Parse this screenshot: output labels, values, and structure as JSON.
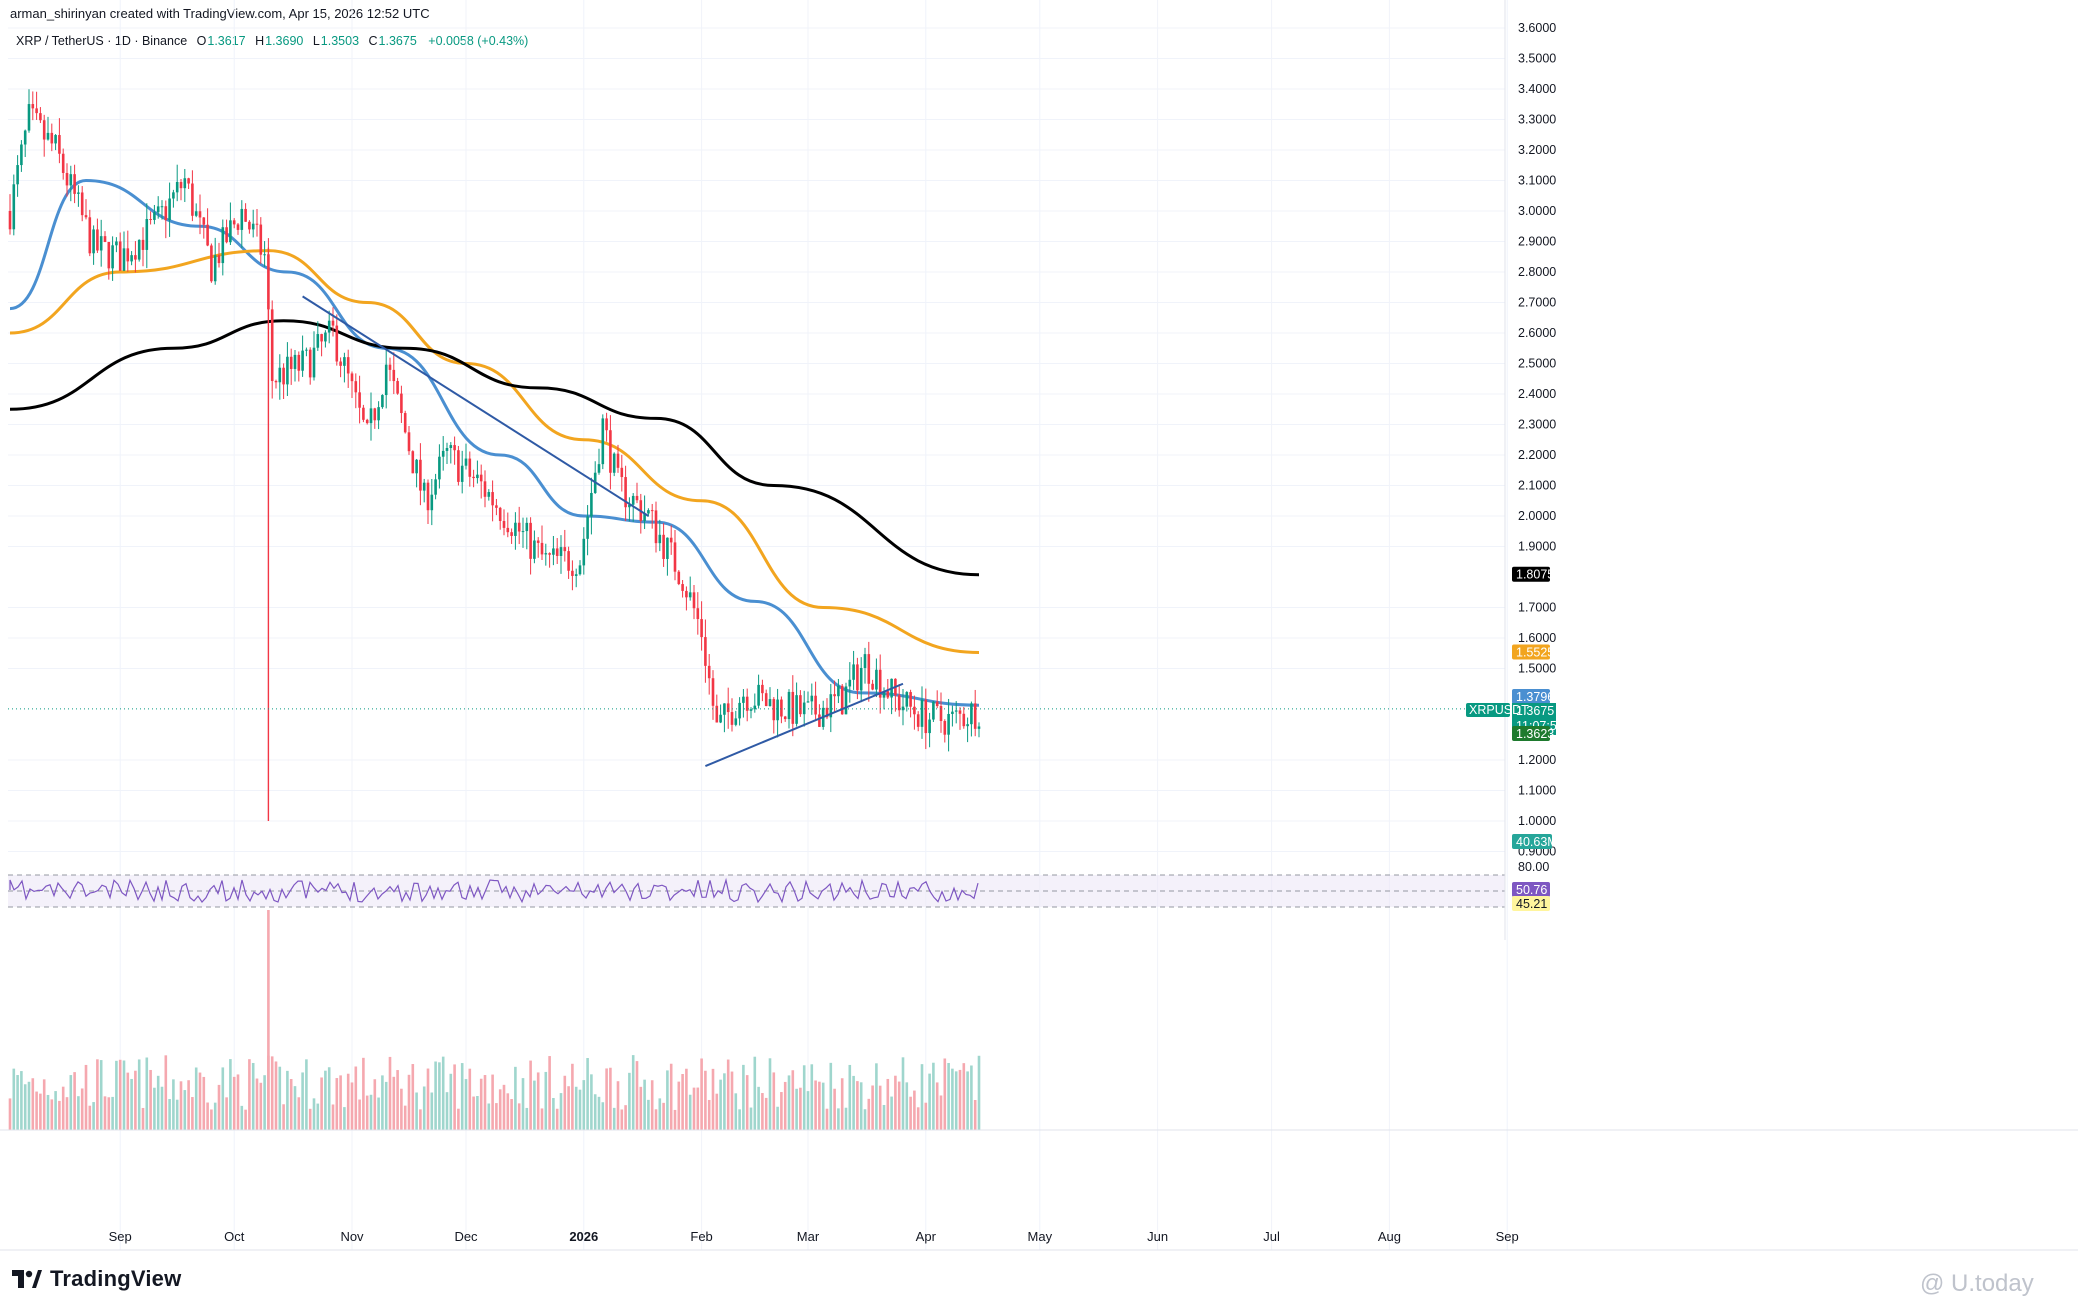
{
  "header": {
    "credit": "arman_shirinyan created with TradingView.com, Apr 15, 2026 12:52 UTC"
  },
  "legend": {
    "symbol": "XRP / TetherUS · 1D · Binance",
    "open_label": "O",
    "open": "1.3617",
    "high_label": "H",
    "high": "1.3690",
    "low_label": "L",
    "low": "1.3503",
    "close_label": "C",
    "close": "1.3675",
    "change": "+0.0058 (+0.43%)"
  },
  "colors": {
    "up": "#089981",
    "down": "#f23645",
    "ma_blue": "#4a8fd1",
    "ma_orange": "#f2a51f",
    "ma_black": "#000000",
    "ma_green": "#8fb38f",
    "trend": "#2f5aa5",
    "rsi": "#7e57c2"
  },
  "chart_data": {
    "type": "candlestick",
    "symbol": "XRP / TetherUS",
    "timeframe": "1D",
    "exchange": "Binance",
    "y_ticks": [
      "3.6000",
      "3.5000",
      "3.4000",
      "3.3000",
      "3.2000",
      "3.1000",
      "3.0000",
      "2.9000",
      "2.8000",
      "2.7000",
      "2.6000",
      "2.5000",
      "2.4000",
      "2.3000",
      "2.2000",
      "2.1000",
      "2.0000",
      "1.9000",
      "1.7000",
      "1.6000",
      "1.5000",
      "1.2000",
      "1.1000",
      "1.0000",
      "0.9000"
    ],
    "x_ticks": [
      "Sep",
      "Oct",
      "Nov",
      "Dec",
      "2026",
      "Feb",
      "Mar",
      "Apr",
      "May",
      "Jun",
      "Jul",
      "Aug",
      "Sep"
    ],
    "price_tags": [
      {
        "label": "1.8075",
        "value": 1.8075,
        "color": "#000000"
      },
      {
        "label": "1.5525",
        "value": 1.5525,
        "color": "#f2a51f"
      },
      {
        "label": "1.3796",
        "value": 1.3796,
        "color": "#4a8fd1"
      },
      {
        "label": "1.3675",
        "value": 1.3675,
        "color": "#089981"
      },
      {
        "label": "11:07:57",
        "value": null,
        "color": "#089981"
      },
      {
        "label": "1.3623",
        "value": 1.3623,
        "color": "#1e7a2e"
      }
    ],
    "symbol_tag": "XRPUSDT",
    "volume_tag": "40.63M",
    "rsi": {
      "upper": "80.00",
      "value": "50.76",
      "ma_value": "45.21"
    },
    "trend_lines": [
      {
        "from": [
          "Oct 19 2025",
          2.72
        ],
        "to": [
          "Jan 18 2026",
          2.0
        ]
      },
      {
        "from": [
          "Feb 2 2026",
          1.18
        ],
        "to": [
          "Mar 26 2026",
          1.45
        ]
      }
    ],
    "moving_averages": [
      {
        "color": "blue",
        "points": [
          [
            "Aug 3 2025",
            2.68
          ],
          [
            "Aug 23 2025",
            3.1
          ],
          [
            "Sep 22 2025",
            2.95
          ],
          [
            "Oct 15 2025",
            2.8
          ],
          [
            "Nov 10 2025",
            2.55
          ],
          [
            "Dec 10 2025",
            2.2
          ],
          [
            "Jan 1 2026",
            2.0
          ],
          [
            "Jan 20 2026",
            1.98
          ],
          [
            "Feb 15 2026",
            1.72
          ],
          [
            "Mar 15 2026",
            1.42
          ],
          [
            "Apr 15 2026",
            1.3796
          ]
        ]
      },
      {
        "color": "orange",
        "points": [
          [
            "Aug 3 2025",
            2.6
          ],
          [
            "Sep 1 2025",
            2.8
          ],
          [
            "Oct 10 2025",
            2.87
          ],
          [
            "Nov 5 2025",
            2.7
          ],
          [
            "Dec 1 2025",
            2.5
          ],
          [
            "Jan 1 2026",
            2.25
          ],
          [
            "Feb 1 2026",
            2.05
          ],
          [
            "Mar 5 2026",
            1.7
          ],
          [
            "Apr 15 2026",
            1.5525
          ]
        ]
      },
      {
        "color": "black",
        "points": [
          [
            "Aug 3 2025",
            2.35
          ],
          [
            "Sep 15 2025",
            2.55
          ],
          [
            "Oct 14 2025",
            2.64
          ],
          [
            "Nov 15 2025",
            2.55
          ],
          [
            "Dec 20 2025",
            2.42
          ],
          [
            "Jan 20 2026",
            2.32
          ],
          [
            "Feb 20 2026",
            2.1
          ],
          [
            "Apr 15 2026",
            1.8075
          ]
        ]
      }
    ],
    "candles_sample": [
      [
        "Aug 4 2025",
        3.05,
        3.4,
        2.9,
        3.3
      ],
      [
        "Aug 25 2025",
        2.95,
        3.05,
        2.75,
        2.82
      ],
      [
        "Sep 18 2025",
        3.0,
        3.2,
        2.95,
        3.1
      ],
      [
        "Oct 10 2025",
        2.83,
        2.88,
        1.0,
        2.38
      ],
      [
        "Nov 1 2025",
        2.55,
        2.65,
        2.3,
        2.42
      ],
      [
        "Dec 1 2025",
        2.05,
        2.2,
        1.82,
        2.1
      ],
      [
        "Dec 31 2025",
        1.83,
        1.92,
        1.8,
        1.88
      ],
      [
        "Jan 6 2026",
        2.35,
        2.42,
        2.1,
        2.2
      ],
      [
        "Feb 5 2026",
        1.46,
        1.55,
        1.12,
        1.3
      ],
      [
        "Mar 15 2026",
        1.42,
        1.6,
        1.38,
        1.5
      ],
      [
        "Apr 15 2026",
        1.3617,
        1.369,
        1.3503,
        1.3675
      ]
    ]
  },
  "footer": {
    "brand": "TradingView",
    "watermark": "@ U.today"
  }
}
